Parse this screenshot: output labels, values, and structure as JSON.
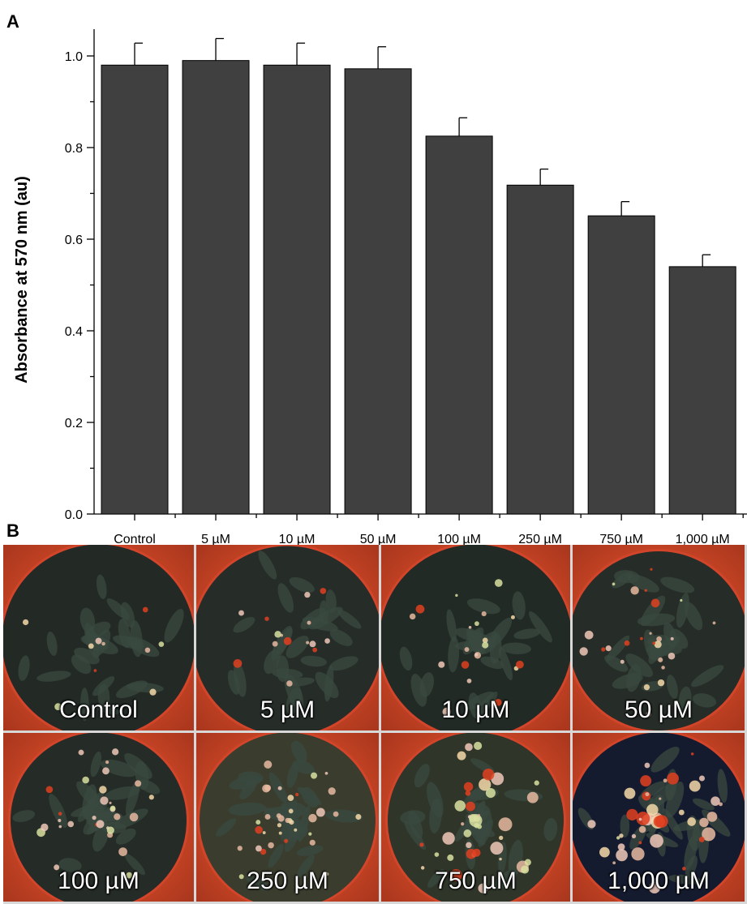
{
  "panels": {
    "a_label": "A",
    "b_label": "B"
  },
  "chart_data": {
    "type": "bar",
    "categories": [
      "Control",
      "5 µM",
      "10 µM",
      "50 µM",
      "100 µM",
      "250 µM",
      "750 µM",
      "1,000 µM"
    ],
    "values": [
      0.98,
      0.99,
      0.98,
      0.972,
      0.825,
      0.718,
      0.651,
      0.54
    ],
    "errors": [
      0.048,
      0.048,
      0.048,
      0.048,
      0.04,
      0.035,
      0.031,
      0.026
    ],
    "ylabel": "Absorbance at 570 nm (au)",
    "xlabel": "",
    "ylim": [
      0,
      1.05
    ],
    "yticks": [
      "0.0",
      "0.2",
      "0.4",
      "0.6",
      "0.8",
      "1.0"
    ],
    "ytick_values": [
      0,
      0.2,
      0.4,
      0.6,
      0.8,
      1.0
    ],
    "grid": false,
    "bar_color": "#404040"
  },
  "micrographs": {
    "labels": [
      "Control",
      "5 µM",
      "10 µM",
      "50 µM",
      "100 µM",
      "250 µM",
      "750 µM",
      "1,000 µM"
    ],
    "well_rim_color": "#d2452a",
    "cell_color": "#3a4a40"
  }
}
